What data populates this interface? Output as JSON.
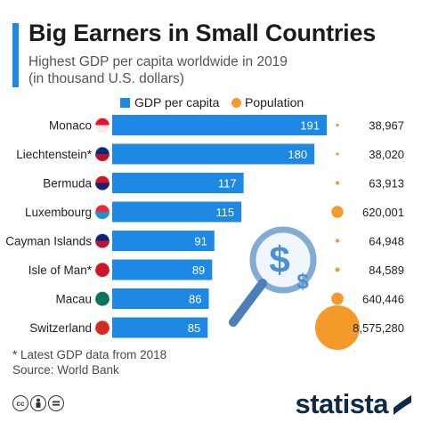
{
  "title": "Big Earners in Small Countries",
  "subtitle_line1": "Highest GDP per capita worldwide in 2019",
  "subtitle_line2": "(in thousand U.S. dollars)",
  "legend": {
    "gdp": "GDP per capita",
    "population": "Population"
  },
  "footnote": "* Latest GDP data from 2018",
  "source": "Source: World Bank",
  "brand": "statista",
  "icons": [
    "cc-icon",
    "person-icon",
    "no-derivatives-icon",
    "statista-logo-icon",
    "flag-icon",
    "magnifier-dollar-icon"
  ],
  "colors": {
    "bar": "#1e88e5",
    "dot": "#f39a2b",
    "accent": "#1e88e5",
    "brand": "#0e2a47"
  },
  "chart_data": {
    "type": "bar",
    "orientation": "horizontal",
    "categories": [
      "Monaco",
      "Liechtenstein*",
      "Bermuda",
      "Luxembourg",
      "Cayman Islands",
      "Isle of Man*",
      "Macau",
      "Switzerland"
    ],
    "series": [
      {
        "name": "GDP per capita",
        "values": [
          191,
          180,
          117,
          115,
          91,
          89,
          86,
          85
        ]
      },
      {
        "name": "Population",
        "values": [
          38967,
          38020,
          63913,
          620001,
          64948,
          84589,
          640446,
          8575280
        ]
      }
    ],
    "population_labels": [
      "38,967",
      "38,020",
      "63,913",
      "620,001",
      "64,948",
      "84,589",
      "640,446",
      "8,575,280"
    ],
    "xlim": [
      0,
      191
    ]
  }
}
